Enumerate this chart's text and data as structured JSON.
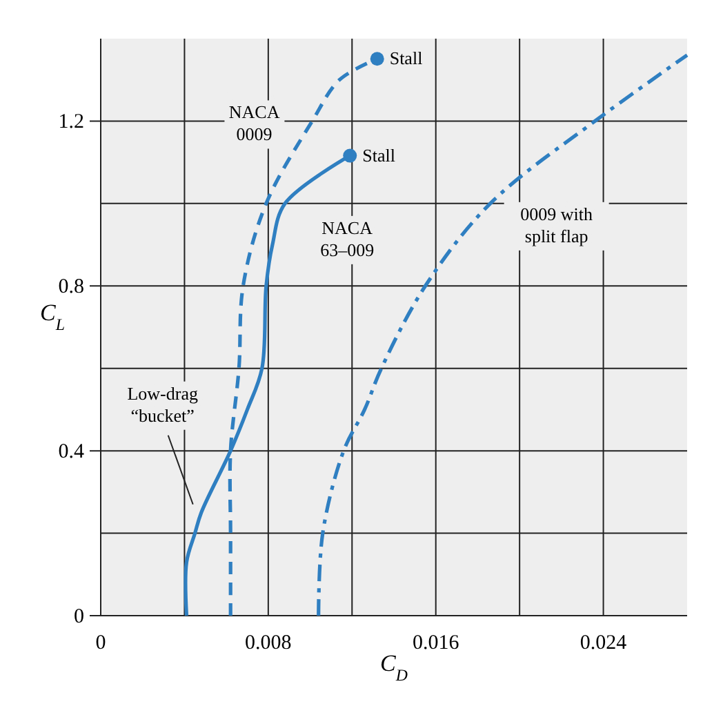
{
  "chart_data": {
    "type": "line",
    "xlabel": "C$_{D}$",
    "ylabel": "C$_{L}$",
    "xlim": [
      0,
      0.028
    ],
    "ylim": [
      0,
      1.4
    ],
    "xticks": [
      0,
      {
        "value": 0.004,
        "label": null
      },
      0.008,
      {
        "value": 0.012,
        "label": null
      },
      0.016,
      {
        "value": 0.02,
        "label": null
      },
      0.024
    ],
    "yticks": [
      0,
      {
        "value": 0.2,
        "label": null
      },
      0.4,
      {
        "value": 0.6,
        "label": null
      },
      0.8,
      {
        "value": 1.0,
        "label": null
      },
      1.2
    ],
    "grid": true,
    "series": [
      {
        "name": "NACA 0009",
        "color": "#2f7fc1",
        "line_style": "dashed",
        "x": [
          0.0062,
          0.0062,
          0.0062,
          0.0066,
          0.0068,
          0.0079,
          0.0101,
          0.0114,
          0.0132
        ],
        "values": [
          0,
          0.2,
          0.4,
          0.6,
          0.8,
          1.0,
          1.2,
          1.3,
          1.351
        ]
      },
      {
        "name": "NACA 63–009",
        "color": "#2f7fc1",
        "line_style": "solid",
        "x": [
          0.0041,
          0.0041,
          0.0045,
          0.0048,
          0.0062,
          0.007,
          0.0077,
          0.0079,
          0.0082,
          0.0088,
          0.0119
        ],
        "values": [
          0,
          0.13,
          0.2,
          0.25,
          0.4,
          0.5,
          0.6,
          0.8,
          0.9,
          1.0,
          1.116
        ]
      },
      {
        "name": "0009 with split flap",
        "color": "#2f7fc1",
        "line_style": "dashdot",
        "x": [
          0.0104,
          0.0106,
          0.0116,
          0.0126,
          0.0134,
          0.0155,
          0.0186,
          0.0236,
          0.028
        ],
        "values": [
          0,
          0.2,
          0.4,
          0.5,
          0.6,
          0.8,
          1.0,
          1.2,
          1.36
        ]
      },
      {
        "type": "scatter",
        "color": "#2f7fc1",
        "marker": "circle",
        "x": [
          0.0132,
          0.0119
        ],
        "values": [
          1.351,
          1.116
        ]
      }
    ],
    "annotations": [
      {
        "text": "Stall",
        "x": 0.0132,
        "y": 1.351
      },
      {
        "text": "Stall",
        "x": 0.0119,
        "y": 1.116
      },
      {
        "text": "Low-drag “bucket”",
        "x": 0.0048,
        "y": 0.25
      }
    ]
  }
}
